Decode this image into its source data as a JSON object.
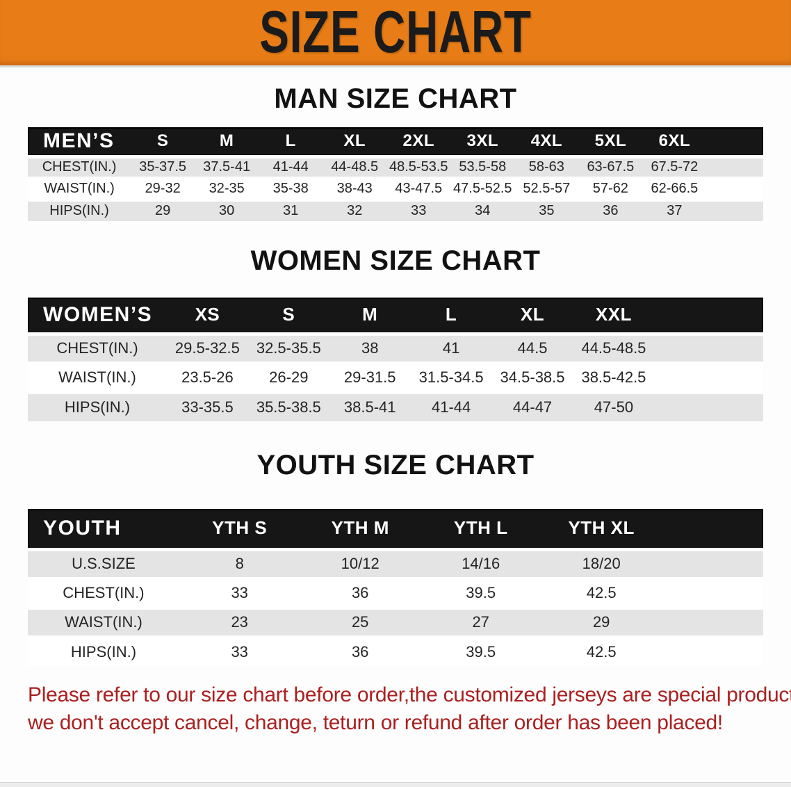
{
  "banner": {
    "title": "SIZE CHART"
  },
  "sections": [
    {
      "heading": "MAN SIZE CHART",
      "table": {
        "corner_label": "MEN’S",
        "columns": [
          "S",
          "M",
          "L",
          "XL",
          "2XL",
          "3XL",
          "4XL",
          "5XL",
          "6XL"
        ],
        "rows": [
          {
            "label": "CHEST(IN.)",
            "values": [
              "35-37.5",
              "37.5-41",
              "41-44",
              "44-48.5",
              "48.5-53.5",
              "53.5-58",
              "58-63",
              "63-67.5",
              "67.5-72"
            ]
          },
          {
            "label": "WAIST(IN.)",
            "values": [
              "29-32",
              "32-35",
              "35-38",
              "38-43",
              "43-47.5",
              "47.5-52.5",
              "52.5-57",
              "57-62",
              "62-66.5"
            ]
          },
          {
            "label": "HIPS(IN.)",
            "values": [
              "29",
              "30",
              "31",
              "32",
              "33",
              "34",
              "35",
              "36",
              "37"
            ]
          }
        ]
      }
    },
    {
      "heading": "WOMEN SIZE CHART",
      "table": {
        "corner_label": "WOMEN’S",
        "columns": [
          "XS",
          "S",
          "M",
          "L",
          "XL",
          "XXL"
        ],
        "rows": [
          {
            "label": "CHEST(IN.)",
            "values": [
              "29.5-32.5",
              "32.5-35.5",
              "38",
              "41",
              "44.5",
              "44.5-48.5"
            ]
          },
          {
            "label": "WAIST(IN.)",
            "values": [
              "23.5-26",
              "26-29",
              "29-31.5",
              "31.5-34.5",
              "34.5-38.5",
              "38.5-42.5"
            ]
          },
          {
            "label": "HIPS(IN.)",
            "values": [
              "33-35.5",
              "35.5-38.5",
              "38.5-41",
              "41-44",
              "44-47",
              "47-50"
            ]
          }
        ]
      }
    },
    {
      "heading": "YOUTH SIZE CHART",
      "table": {
        "corner_label": "YOUTH",
        "columns": [
          "YTH S",
          "YTH M",
          "YTH L",
          "YTH XL"
        ],
        "rows": [
          {
            "label": "U.S.SIZE",
            "values": [
              "8",
              "10/12",
              "14/16",
              "18/20"
            ]
          },
          {
            "label": "CHEST(IN.)",
            "values": [
              "33",
              "36",
              "39.5",
              "42.5"
            ]
          },
          {
            "label": "WAIST(IN.)",
            "values": [
              "23",
              "25",
              "27",
              "29"
            ]
          },
          {
            "label": "HIPS(IN.)",
            "values": [
              "33",
              "36",
              "39.5",
              "42.5"
            ]
          }
        ]
      }
    }
  ],
  "footer": {
    "lines": [
      "Please refer to our size chart before order,the customized jerseys are special products,",
      "we don't accept cancel, change, teturn or refund after order has been placed!"
    ]
  },
  "colors": {
    "banner_bg": "#e87d17",
    "banner_text": "#1b1b1b",
    "header_bar": "#161616",
    "header_text": "#ffffff",
    "row_stripe": "#e4e4e4",
    "notice_text": "#ab1f1f"
  }
}
